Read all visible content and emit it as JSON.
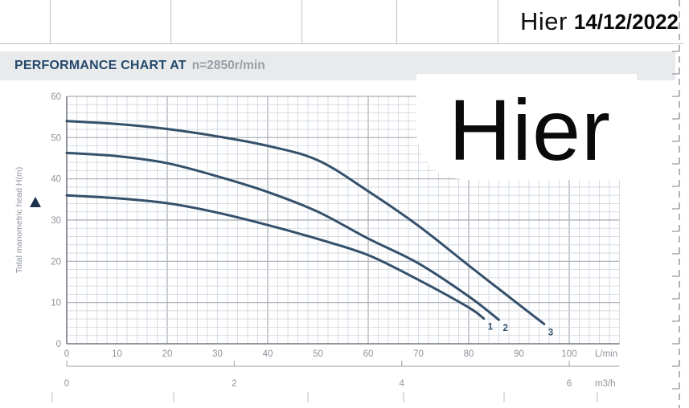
{
  "header": {
    "hier_label": "Hier",
    "date": "14/12/2022"
  },
  "title": {
    "main": "PERFORMANCE CHART AT",
    "speed": "n=2850r/min"
  },
  "watermark": "Hier",
  "chart_data": {
    "type": "line",
    "title": "PERFORMANCE CHART AT n=2850r/min",
    "ylabel": "Total manometric head H(m)",
    "xlabel": "L/min",
    "xlabel_secondary": "m3/h",
    "xlim": [
      0,
      110
    ],
    "ylim": [
      0,
      60
    ],
    "grid": true,
    "x_ticks": [
      0,
      10,
      20,
      30,
      40,
      50,
      60,
      70,
      80,
      90,
      100
    ],
    "x_unit": "L/min",
    "x2_ticks": [
      0,
      2,
      4,
      6
    ],
    "x2_unit": "m3/h",
    "y_ticks": [
      0,
      10,
      20,
      30,
      40,
      50,
      60
    ],
    "series": [
      {
        "name": "1",
        "points": [
          [
            0,
            36
          ],
          [
            10,
            35.3
          ],
          [
            20,
            34.1
          ],
          [
            30,
            31.8
          ],
          [
            40,
            28.8
          ],
          [
            50,
            25.4
          ],
          [
            60,
            21.5
          ],
          [
            70,
            15.5
          ],
          [
            80,
            8.8
          ],
          [
            83,
            6.1
          ]
        ]
      },
      {
        "name": "2",
        "points": [
          [
            0,
            46.3
          ],
          [
            10,
            45.5
          ],
          [
            20,
            43.8
          ],
          [
            30,
            40.6
          ],
          [
            40,
            36.8
          ],
          [
            50,
            32.0
          ],
          [
            60,
            25.5
          ],
          [
            70,
            19.5
          ],
          [
            80,
            11.5
          ],
          [
            86,
            5.8
          ]
        ]
      },
      {
        "name": "3",
        "points": [
          [
            0,
            54
          ],
          [
            10,
            53.3
          ],
          [
            20,
            52.1
          ],
          [
            30,
            50.3
          ],
          [
            40,
            48.0
          ],
          [
            50,
            44.5
          ],
          [
            60,
            37.0
          ],
          [
            70,
            28.6
          ],
          [
            80,
            19.0
          ],
          [
            90,
            9.5
          ],
          [
            95,
            4.8
          ]
        ]
      }
    ]
  },
  "colors": {
    "curve": "#34506b",
    "grid_minor": "#ccd5dd",
    "grid_major": "#a6adb4",
    "axis_frame": "#767d84",
    "tick_text": "#8d939b",
    "secondary_axis": "#9aa0a7",
    "ruler": "#8f959b",
    "triangle": "#1d3050"
  }
}
